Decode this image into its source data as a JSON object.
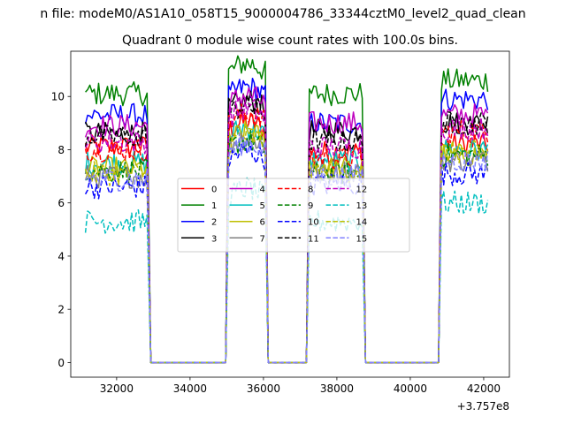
{
  "figure": {
    "suptitle": "n file: modeM0/AS1A10_058T15_9000004786_33344cztM0_level2_quad_clean",
    "title": "Quadrant 0 module wise count rates with 100.0s bins."
  },
  "chart_data": {
    "type": "line",
    "title": "Quadrant 0 module wise count rates with 100.0s bins.",
    "xlabel": "",
    "ylabel": "",
    "xlim": [
      30750,
      42700
    ],
    "ylim": [
      -0.55,
      11.7
    ],
    "x_offset_label": "+3.757e8",
    "xticks": [
      32000,
      34000,
      36000,
      38000,
      40000,
      42000
    ],
    "yticks": [
      0,
      2,
      4,
      6,
      8,
      10
    ],
    "grid": false,
    "legend_position": "center",
    "segments": [
      {
        "start": 31150,
        "end": 32850,
        "step": 60
      },
      {
        "start": 35050,
        "end": 36050,
        "step": 50
      },
      {
        "start": 37250,
        "end": 38700,
        "step": 60
      },
      {
        "start": 40850,
        "end": 42150,
        "step": 60
      }
    ],
    "series": [
      {
        "name": "0",
        "color": "#ff0000",
        "dash": "solid",
        "levels": [
          8.1,
          8.7,
          7.9,
          8.2
        ]
      },
      {
        "name": "1",
        "color": "#008000",
        "dash": "solid",
        "levels": [
          10.1,
          10.9,
          10.1,
          10.6
        ]
      },
      {
        "name": "2",
        "color": "#0000ff",
        "dash": "solid",
        "levels": [
          9.3,
          10.0,
          9.0,
          9.9
        ]
      },
      {
        "name": "3",
        "color": "#000000",
        "dash": "solid",
        "levels": [
          8.6,
          9.5,
          8.7,
          9.0
        ]
      },
      {
        "name": "4",
        "color": "#bf00bf",
        "dash": "solid",
        "levels": [
          8.9,
          9.7,
          9.0,
          9.3
        ]
      },
      {
        "name": "5",
        "color": "#00bfbf",
        "dash": "solid",
        "levels": [
          7.5,
          8.5,
          7.6,
          8.0
        ]
      },
      {
        "name": "6",
        "color": "#bfbf00",
        "dash": "solid",
        "levels": [
          7.3,
          8.3,
          7.3,
          7.8
        ]
      },
      {
        "name": "7",
        "color": "#808080",
        "dash": "solid",
        "levels": [
          7.0,
          8.1,
          7.2,
          7.6
        ]
      },
      {
        "name": "8",
        "color": "#ff0000",
        "dash": "dashed",
        "levels": [
          8.0,
          9.0,
          7.7,
          8.7
        ]
      },
      {
        "name": "9",
        "color": "#008000",
        "dash": "dashed",
        "levels": [
          7.2,
          8.0,
          7.1,
          7.8
        ]
      },
      {
        "name": "10",
        "color": "#0000ff",
        "dash": "dashed",
        "levels": [
          6.6,
          7.6,
          6.7,
          7.1
        ]
      },
      {
        "name": "11",
        "color": "#000000",
        "dash": "dashed",
        "levels": [
          8.5,
          9.3,
          8.3,
          9.0
        ]
      },
      {
        "name": "12",
        "color": "#bf00bf",
        "dash": "dashed",
        "levels": [
          8.3,
          9.2,
          8.1,
          8.8
        ]
      },
      {
        "name": "13",
        "color": "#00bfbf",
        "dash": "dashed",
        "levels": [
          5.3,
          6.2,
          5.3,
          6.0
        ]
      },
      {
        "name": "14",
        "color": "#bfbf00",
        "dash": "dashed",
        "levels": [
          7.1,
          8.2,
          7.2,
          7.9
        ]
      },
      {
        "name": "15",
        "color": "#8080ff",
        "dash": "dashed",
        "levels": [
          6.9,
          7.9,
          7.0,
          7.6
        ]
      }
    ]
  }
}
